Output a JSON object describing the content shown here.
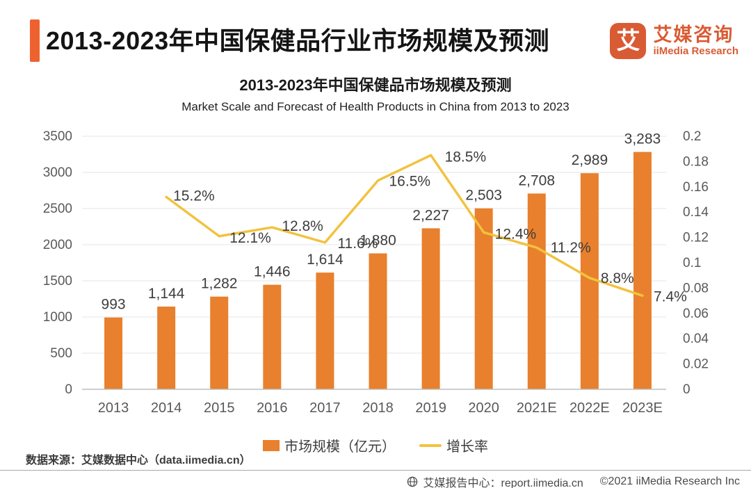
{
  "header": {
    "title": "2013-2023年中国保健品行业市场规模及预测",
    "accent_color": "#EE6230",
    "logo": {
      "mark_glyph": "艾",
      "name_cn": "艾媒咨询",
      "name_en": "iiMedia Research",
      "brand_color": "#D95B34"
    }
  },
  "chart_data": {
    "type": "bar",
    "title": "2013-2023年中国保健品市场规模及预测",
    "subtitle": "Market Scale and Forecast of Health Products in China from 2013 to 2023",
    "categories": [
      "2013",
      "2014",
      "2015",
      "2016",
      "2017",
      "2018",
      "2019",
      "2020",
      "2021E",
      "2022E",
      "2023E"
    ],
    "series": [
      {
        "name": "市场规模（亿元）",
        "type": "bar",
        "color": "#E8802D",
        "values": [
          993,
          1144,
          1282,
          1446,
          1614,
          1880,
          2227,
          2503,
          2708,
          2989,
          3283
        ],
        "labels": [
          "993",
          "1,144",
          "1,282",
          "1,446",
          "1,614",
          "1,880",
          "2,227",
          "2,503",
          "2,708",
          "2,989",
          "3,283"
        ]
      },
      {
        "name": "增长率",
        "type": "line",
        "color": "#F2C23E",
        "values": [
          null,
          0.152,
          0.121,
          0.128,
          0.116,
          0.165,
          0.185,
          0.124,
          0.112,
          0.088,
          0.074
        ],
        "labels": [
          null,
          "15.2%",
          "12.1%",
          "12.8%",
          "11.6%",
          "16.5%",
          "18.5%",
          "12.4%",
          "11.2%",
          "8.8%",
          "7.4%"
        ]
      }
    ],
    "left_axis": {
      "min": 0,
      "max": 3500,
      "step": 500,
      "ticks": [
        "0",
        "500",
        "1000",
        "1500",
        "2000",
        "2500",
        "3000",
        "3500"
      ]
    },
    "right_axis": {
      "min": 0,
      "max": 0.2,
      "step": 0.02,
      "ticks": [
        "0",
        "0.02",
        "0.04",
        "0.06",
        "0.08",
        "0.1",
        "0.12",
        "0.14",
        "0.16",
        "0.18",
        "0.2"
      ]
    },
    "grid": true,
    "legend_position": "bottom"
  },
  "source_note": "数据来源：艾媒数据中心（data.iimedia.cn）",
  "footer": {
    "report_center": "艾媒报告中心：report.iimedia.cn",
    "copyright": "©2021  iiMedia Research Inc"
  }
}
